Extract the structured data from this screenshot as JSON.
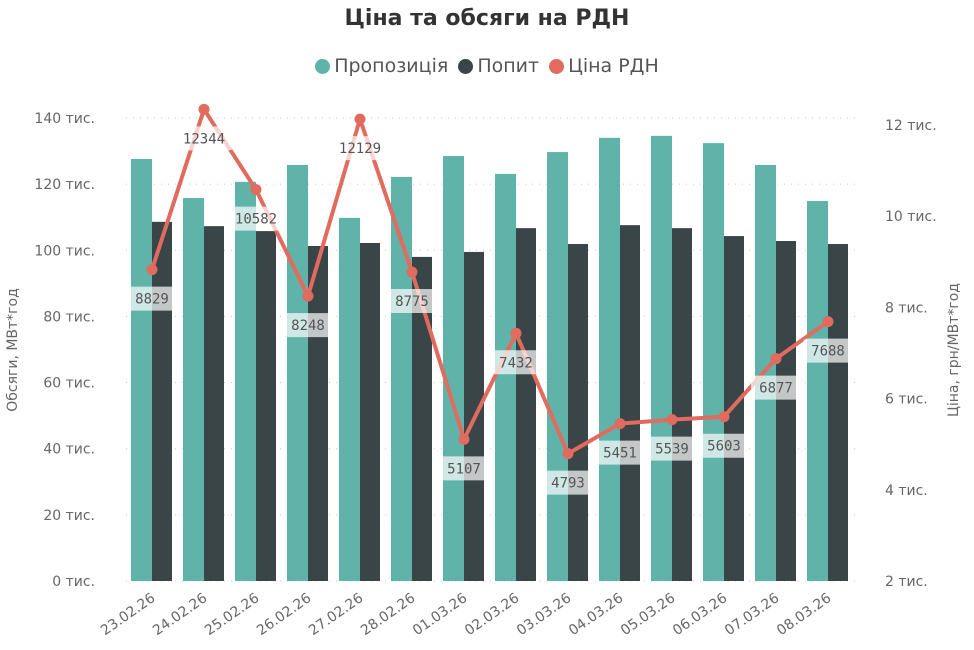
{
  "chart_data": {
    "type": "bar+line",
    "title": "Ціна та обсяги на РДН",
    "categories": [
      "23.02.26",
      "24.02.26",
      "25.02.26",
      "26.02.26",
      "27.02.26",
      "28.02.26",
      "01.03.26",
      "02.03.26",
      "03.03.26",
      "04.03.26",
      "05.03.26",
      "06.03.26",
      "07.03.26",
      "08.03.26"
    ],
    "series": [
      {
        "name": "Пропозиція",
        "type": "bar",
        "axis": "left",
        "color": "#5fb3a9",
        "values": [
          127600,
          115800,
          120700,
          125800,
          109800,
          122200,
          128500,
          123100,
          129700,
          134000,
          134600,
          132400,
          125800,
          114900
        ]
      },
      {
        "name": "Попит",
        "type": "bar",
        "axis": "left",
        "color": "#3a4548",
        "values": [
          108600,
          107300,
          105800,
          101300,
          102200,
          98000,
          99500,
          106700,
          101900,
          107600,
          106700,
          104300,
          102800,
          101900
        ]
      },
      {
        "name": "Ціна РДН",
        "type": "line",
        "axis": "right",
        "color": "#e06b5e",
        "values": [
          8829,
          12344,
          10582,
          8248,
          12129,
          8775,
          5107,
          7432,
          4793,
          5451,
          5539,
          5603,
          6877,
          7688
        ],
        "data_labels": [
          "8829",
          "12344",
          "10582",
          "8248",
          "12129",
          "8775",
          "5107",
          "7432",
          "4793",
          "5451",
          "5539",
          "5603",
          "6877",
          "7688"
        ]
      }
    ],
    "ylabel": "Обсяги, МВт*год",
    "ylabel_right": "Ціна, грн/МВт*год",
    "ylim": [
      0,
      140000
    ],
    "ylim_right": [
      2000,
      12000
    ],
    "yticks": [
      "0 тис.",
      "20 тис.",
      "40 тис.",
      "60 тис.",
      "80 тис.",
      "100 тис.",
      "120 тис.",
      "140 тис."
    ],
    "yticks_right": [
      "2 тис.",
      "4 тис.",
      "6 тис.",
      "8 тис.",
      "10 тис.",
      "12 тис."
    ],
    "grid": "horizontal dotted",
    "legend": "top-center"
  }
}
